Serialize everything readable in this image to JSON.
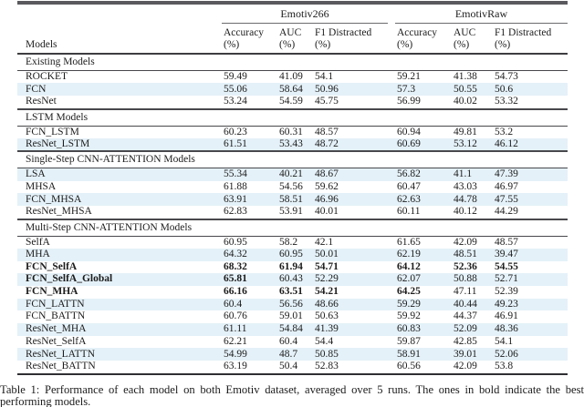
{
  "table": {
    "models_label": "Models",
    "groups": [
      {
        "label": "Emotiv266"
      },
      {
        "label": "EmotivRaw"
      }
    ],
    "col_headers": [
      {
        "line1": "Accuracy",
        "line2": "(%)"
      },
      {
        "line1": "AUC",
        "line2": "(%)"
      },
      {
        "line1": "F1 Distracted",
        "line2": "(%)"
      },
      {
        "line1": "Accuracy",
        "line2": "(%)"
      },
      {
        "line1": "AUC",
        "line2": "(%)"
      },
      {
        "line1": "F1 Distracted",
        "line2": "(%)"
      }
    ],
    "highlight_color": "#e4f1f8",
    "sections": [
      {
        "title": "Existing Models",
        "rows": [
          {
            "model": "ROCKET",
            "values": [
              "59.49",
              "41.09",
              "54.1",
              "59.21",
              "41.38",
              "54.73"
            ],
            "highlight": false
          },
          {
            "model": "FCN",
            "values": [
              "55.06",
              "58.64",
              "50.96",
              "57.3",
              "50.55",
              "50.6"
            ],
            "highlight": true
          },
          {
            "model": "ResNet",
            "values": [
              "53.24",
              "54.59",
              "45.75",
              "56.99",
              "40.02",
              "53.32"
            ],
            "highlight": false
          }
        ]
      },
      {
        "title": "LSTM Models",
        "rows": [
          {
            "model": "FCN_LSTM",
            "values": [
              "60.23",
              "60.31",
              "48.57",
              "60.94",
              "49.81",
              "53.2"
            ],
            "highlight": false
          },
          {
            "model": "ResNet_LSTM",
            "values": [
              "61.51",
              "53.43",
              "48.72",
              "60.69",
              "53.12",
              "46.12"
            ],
            "highlight": true
          }
        ]
      },
      {
        "title": "Single-Step CNN-ATTENTION Models",
        "rows": [
          {
            "model": "LSA",
            "values": [
              "55.34",
              "40.21",
              "48.67",
              "56.82",
              "41.1",
              "47.39"
            ],
            "highlight": true
          },
          {
            "model": "MHSA",
            "values": [
              "61.88",
              "54.56",
              "59.62",
              "60.47",
              "43.03",
              "46.97"
            ],
            "highlight": false
          },
          {
            "model": "FCN_MHSA",
            "values": [
              "63.91",
              "58.51",
              "46.96",
              "62.63",
              "44.78",
              "47.55"
            ],
            "highlight": true
          },
          {
            "model": "ResNet_MHSA",
            "values": [
              "62.83",
              "53.91",
              "40.01",
              "60.11",
              "40.12",
              "44.29"
            ],
            "highlight": false
          }
        ]
      },
      {
        "title": "Multi-Step CNN-ATTENTION Models",
        "rows": [
          {
            "model": "SelfA",
            "values": [
              "60.95",
              "58.2",
              "42.1",
              "61.65",
              "42.09",
              "48.57"
            ],
            "highlight": false
          },
          {
            "model": "MHA",
            "values": [
              "64.32",
              "60.95",
              "50.01",
              "62.19",
              "48.51",
              "39.47"
            ],
            "highlight": true
          },
          {
            "model": "FCN_SelfA",
            "values": [
              "68.32",
              "61.94",
              "54.71",
              "64.12",
              "52.36",
              "54.55"
            ],
            "highlight": false,
            "bold_name": true,
            "bold_cols": [
              0,
              1,
              2,
              3,
              4,
              5
            ]
          },
          {
            "model": "FCN_SelfA_Global",
            "values": [
              "65.81",
              "60.43",
              "52.29",
              "62.07",
              "50.88",
              "52.71"
            ],
            "highlight": true,
            "bold_name": true,
            "bold_cols": [
              0
            ]
          },
          {
            "model": "FCN_MHA",
            "values": [
              "66.16",
              "63.51",
              "54.21",
              "64.25",
              "47.11",
              "52.39"
            ],
            "highlight": false,
            "bold_name": true,
            "bold_cols": [
              0,
              1,
              2,
              3
            ]
          },
          {
            "model": "FCN_LATTN",
            "values": [
              "60.4",
              "56.56",
              "48.66",
              "59.29",
              "40.44",
              "49.23"
            ],
            "highlight": true
          },
          {
            "model": "FCN_BATTN",
            "values": [
              "60.76",
              "59.01",
              "50.63",
              "59.92",
              "44.37",
              "46.91"
            ],
            "highlight": false
          },
          {
            "model": "ResNet_MHA",
            "values": [
              "61.11",
              "54.84",
              "41.39",
              "60.83",
              "52.09",
              "48.36"
            ],
            "highlight": true
          },
          {
            "model": "ResNet_SelfA",
            "values": [
              "62.21",
              "60.4",
              "54.4",
              "59.87",
              "42.85",
              "54.1"
            ],
            "highlight": false
          },
          {
            "model": "ResNet_LATTN",
            "values": [
              "54.99",
              "48.7",
              "50.85",
              "58.91",
              "39.01",
              "52.06"
            ],
            "highlight": true
          },
          {
            "model": "ResNet_BATTN",
            "values": [
              "63.19",
              "50.4",
              "52.83",
              "60.56",
              "42.09",
              "53.8"
            ],
            "highlight": false
          }
        ]
      }
    ],
    "caption": "Table 1:  Performance of each model on both Emotiv dataset, averaged over 5 runs.  The ones in bold indicate the best performing models."
  }
}
